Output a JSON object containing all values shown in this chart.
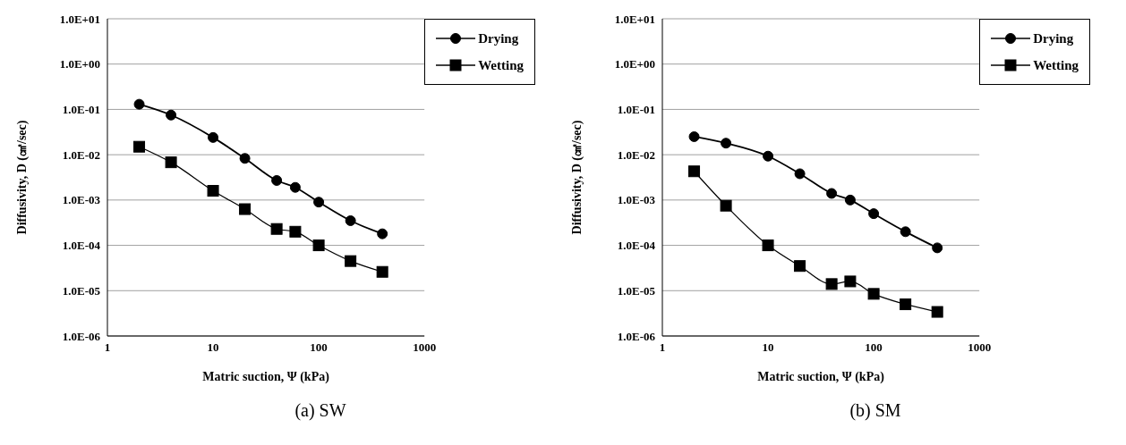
{
  "chart_data": [
    {
      "type": "line",
      "xlabel": "Matric suction, Ψ (kPa)",
      "ylabel": "Diffusivity, D (㎠/sec)",
      "annotations": [
        "(a)  SW"
      ],
      "log": "xy",
      "grid": "y",
      "legend": "top right",
      "line_style": "solid",
      "xlim": [
        1,
        1000
      ],
      "xticks": [
        1,
        10,
        100,
        1000
      ],
      "ylim": [
        1e-06,
        10
      ],
      "yticks": [
        {
          "value": 1e-06,
          "label": "1.0E-06"
        },
        {
          "value": 1e-05,
          "label": "1.0E-05"
        },
        {
          "value": 0.0001,
          "label": "1.0E-04"
        },
        {
          "value": 0.001,
          "label": "1.0E-03"
        },
        {
          "value": 0.01,
          "label": "1.0E-02"
        },
        {
          "value": 0.1,
          "label": "1.0E-01"
        },
        {
          "value": 1,
          "label": "1.0E+00"
        },
        {
          "value": 10,
          "label": "1.0E+01"
        }
      ],
      "x": [
        2,
        4,
        10,
        20,
        40,
        60,
        100,
        200,
        400
      ],
      "series": [
        {
          "name": "Drying",
          "color": "#000000",
          "marker": "circle",
          "values": [
            0.13,
            0.075,
            0.024,
            0.0083,
            0.0027,
            0.0019,
            0.0009,
            0.00035,
            0.00018
          ]
        },
        {
          "name": "Wetting",
          "color": "#000000",
          "marker": "square",
          "values": [
            0.015,
            0.0068,
            0.0016,
            0.00063,
            0.00023,
            0.0002,
            0.0001,
            4.5e-05,
            2.6e-05
          ]
        }
      ]
    },
    {
      "type": "line",
      "xlabel": "Matric suction, Ψ (kPa)",
      "ylabel": "Diffusivity, D (㎠/sec)",
      "annotations": [
        "(b)  SM"
      ],
      "log": "xy",
      "grid": "y",
      "legend": "top right",
      "line_style": "solid",
      "xlim": [
        1,
        1000
      ],
      "xticks": [
        1,
        10,
        100,
        1000
      ],
      "ylim": [
        1e-06,
        10
      ],
      "yticks": [
        {
          "value": 1e-06,
          "label": "1.0E-06"
        },
        {
          "value": 1e-05,
          "label": "1.0E-05"
        },
        {
          "value": 0.0001,
          "label": "1.0E-04"
        },
        {
          "value": 0.001,
          "label": "1.0E-03"
        },
        {
          "value": 0.01,
          "label": "1.0E-02"
        },
        {
          "value": 0.1,
          "label": "1.0E-01"
        },
        {
          "value": 1,
          "label": "1.0E+00"
        },
        {
          "value": 10,
          "label": "1.0E+01"
        }
      ],
      "x": [
        2,
        4,
        10,
        20,
        40,
        60,
        100,
        200,
        400
      ],
      "series": [
        {
          "name": "Drying",
          "color": "#000000",
          "marker": "circle",
          "values": [
            0.025,
            0.018,
            0.0093,
            0.0038,
            0.0014,
            0.001,
            0.0005,
            0.0002,
            8.8e-05
          ]
        },
        {
          "name": "Wetting",
          "color": "#000000",
          "marker": "square",
          "values": [
            0.0043,
            0.00075,
            0.0001,
            3.5e-05,
            1.4e-05,
            1.6e-05,
            8.5e-06,
            5e-06,
            3.4e-06
          ]
        }
      ]
    }
  ]
}
